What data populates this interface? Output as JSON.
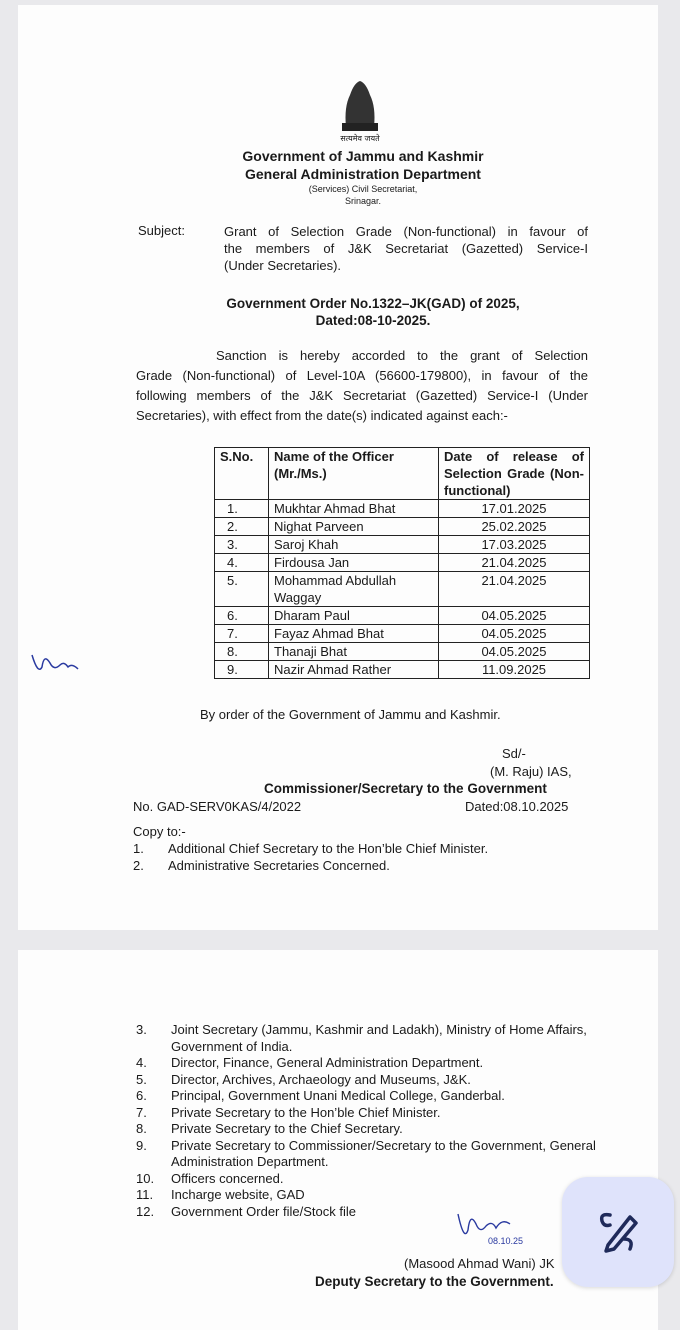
{
  "header": {
    "emblem_text": "सत्यमेव जयते",
    "gov": "Government of Jammu and Kashmir",
    "dept": "General Administration Department",
    "office": "(Services) Civil Secretariat,",
    "city": "Srinagar."
  },
  "subject": {
    "label": "Subject:",
    "lines": [
      "Grant of Selection Grade (Non-functional) in favour of",
      "the members of J&K Secretariat (Gazetted) Service-I",
      "(Under Secretaries)."
    ]
  },
  "order": {
    "line1": "Government Order No.1322–JK(GAD) of 2025,",
    "line2": "Dated:08-10-2025."
  },
  "body": {
    "lines": [
      "Sanction is hereby accorded to the grant of Selection",
      "Grade (Non-functional) of Level-10A (56600-179800), in favour of the",
      "following members of the J&K Secretariat (Gazetted) Service-I (Under",
      "Secretaries), with effect from the date(s) indicated against each:-"
    ]
  },
  "table": {
    "headers": [
      "S.No.",
      "Name of the Officer (Mr./Ms.)",
      "Date of release of Selection Grade (Non- functional)"
    ],
    "rows": [
      [
        "1.",
        "Mukhtar Ahmad Bhat",
        "17.01.2025"
      ],
      [
        "2.",
        "Nighat Parveen",
        "25.02.2025"
      ],
      [
        "3.",
        "Saroj Khah",
        "17.03.2025"
      ],
      [
        "4.",
        "Firdousa Jan",
        "21.04.2025"
      ],
      [
        "5.",
        "Mohammad Abdullah Waggay",
        "21.04.2025"
      ],
      [
        "6.",
        "Dharam Paul",
        "04.05.2025"
      ],
      [
        "7.",
        "Fayaz Ahmad Bhat",
        "04.05.2025"
      ],
      [
        "8.",
        "Thanaji Bhat",
        "04.05.2025"
      ],
      [
        "9.",
        "Nazir Ahmad Rather",
        "11.09.2025"
      ]
    ]
  },
  "closing": {
    "by_order": "By order of the Government of Jammu and Kashmir.",
    "sd": "Sd/-",
    "signatory": "(M. Raju) IAS,",
    "designation": "Commissioner/Secretary to the Government",
    "ref_no": "No. GAD-SERV0KAS/4/2022",
    "ref_date": "Dated:08.10.2025"
  },
  "copy": {
    "label": "Copy to:-",
    "items": [
      {
        "n": "1.",
        "t": "Additional Chief Secretary to the Hon’ble Chief Minister."
      },
      {
        "n": "2.",
        "t": "Administrative Secretaries Concerned."
      },
      {
        "n": "3.",
        "t": "Joint Secretary (Jammu, Kashmir and Ladakh), Ministry of Home Affairs, Government of India."
      },
      {
        "n": "4.",
        "t": "Director, Finance, General Administration Department."
      },
      {
        "n": "5.",
        "t": "Director, Archives, Archaeology and Museums, J&K."
      },
      {
        "n": "6.",
        "t": "Principal, Government Unani Medical College, Ganderbal."
      },
      {
        "n": "7.",
        "t": "Private Secretary to the Hon’ble Chief Minister."
      },
      {
        "n": "8.",
        "t": "Private Secretary to the Chief Secretary."
      },
      {
        "n": "9.",
        "t": "Private Secretary to Commissioner/Secretary to the Government, General Administration Department."
      },
      {
        "n": "10.",
        "t": "Officers concerned."
      },
      {
        "n": "11.",
        "t": "Incharge website, GAD"
      },
      {
        "n": "12.",
        "t": "Government Order file/Stock file"
      }
    ]
  },
  "footer_sign": {
    "initials": "Masood",
    "date": "08.10.25",
    "name": "(Masood Ahmad Wani) JK",
    "designation": "Deputy Secretary to the Government."
  },
  "fab": {
    "icon": "draw-pen-icon",
    "color": "#1f2a5a",
    "bg": "#dfe3fb"
  }
}
